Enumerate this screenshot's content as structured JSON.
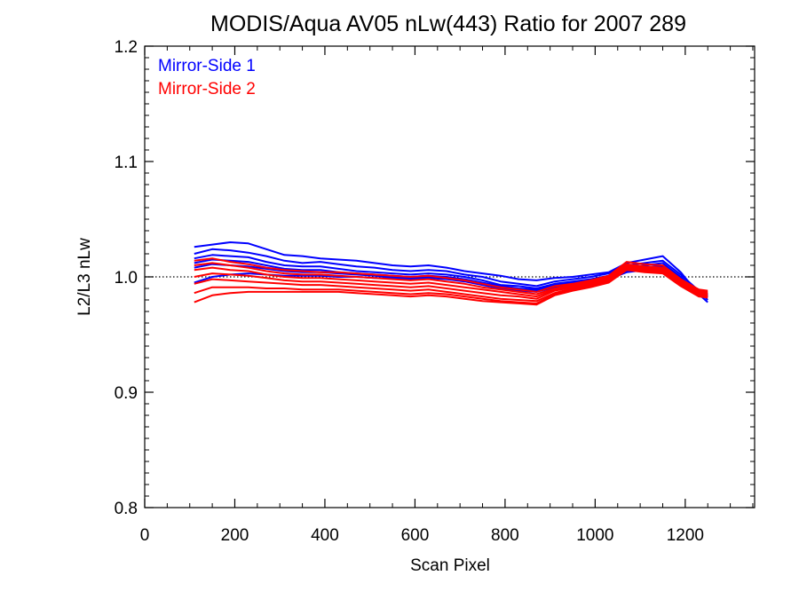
{
  "chart_data": {
    "type": "line",
    "title": "MODIS/Aqua AV05 nLw(443) Ratio for 2007 289",
    "xlabel": "Scan Pixel",
    "ylabel": "L2/L3 nLw",
    "xlim": [
      0,
      1354
    ],
    "ylim": [
      0.8,
      1.2
    ],
    "xticks": [
      "0",
      "200",
      "400",
      "600",
      "800",
      "1000",
      "1200"
    ],
    "xtick_values": [
      0,
      200,
      400,
      600,
      800,
      1000,
      1200
    ],
    "yticks": [
      "0.8",
      "0.9",
      "1.0",
      "1.1",
      "1.2"
    ],
    "ytick_values": [
      0.8,
      0.9,
      1.0,
      1.1,
      1.2
    ],
    "reference_line": {
      "y": 1.0,
      "style": "dotted"
    },
    "legend_placement": "top-left",
    "legend": [
      {
        "name": "Mirror-Side 1",
        "color": "#0000ff"
      },
      {
        "name": "Mirror-Side 2",
        "color": "#ff0000"
      }
    ],
    "x": [
      110,
      150,
      190,
      230,
      270,
      310,
      350,
      390,
      430,
      470,
      510,
      550,
      590,
      630,
      670,
      710,
      750,
      790,
      830,
      870,
      910,
      950,
      990,
      1030,
      1070,
      1110,
      1150,
      1190,
      1230,
      1250
    ],
    "groups": [
      {
        "name": "Mirror-Side 1",
        "color": "#0000ff",
        "series": [
          [
            1.026,
            1.028,
            1.03,
            1.029,
            1.024,
            1.019,
            1.018,
            1.016,
            1.015,
            1.014,
            1.012,
            1.01,
            1.009,
            1.01,
            1.008,
            1.005,
            1.003,
            1.001,
            0.998,
            0.997,
            0.999,
            1.0,
            1.002,
            1.004,
            1.012,
            1.015,
            1.018,
            1.004,
            0.985,
            0.978
          ],
          [
            1.02,
            1.024,
            1.023,
            1.021,
            1.018,
            1.014,
            1.012,
            1.013,
            1.011,
            1.009,
            1.008,
            1.006,
            1.005,
            1.006,
            1.005,
            1.002,
            1.0,
            0.996,
            0.994,
            0.992,
            0.996,
            0.998,
            1.0,
            1.003,
            1.01,
            1.012,
            1.014,
            1.002,
            0.988,
            0.98
          ],
          [
            1.016,
            1.019,
            1.018,
            1.017,
            1.013,
            1.01,
            1.009,
            1.009,
            1.007,
            1.005,
            1.004,
            1.003,
            1.002,
            1.003,
            1.002,
            1.0,
            0.997,
            0.993,
            0.992,
            0.99,
            0.994,
            0.996,
            0.998,
            1.001,
            1.008,
            1.01,
            1.012,
            1.0,
            0.986,
            0.982
          ],
          [
            1.012,
            1.015,
            1.014,
            1.013,
            1.01,
            1.007,
            1.006,
            1.006,
            1.004,
            1.003,
            1.002,
            1.001,
            1.0,
            1.001,
            1.0,
            0.998,
            0.995,
            0.992,
            0.99,
            0.989,
            0.993,
            0.995,
            0.997,
            1.0,
            1.006,
            1.008,
            1.01,
            0.999,
            0.987,
            0.983
          ],
          [
            1.008,
            1.011,
            1.01,
            1.009,
            1.007,
            1.005,
            1.004,
            1.004,
            1.003,
            1.002,
            1.001,
            1.0,
            0.999,
            1.0,
            0.999,
            0.997,
            0.994,
            0.991,
            0.989,
            0.988,
            0.992,
            0.994,
            0.996,
            0.999,
            1.005,
            1.007,
            1.009,
            0.998,
            0.988,
            0.984
          ],
          [
            0.995,
            1.0,
            1.002,
            1.003,
            1.002,
            1.001,
            1.001,
            1.001,
            1.0,
            1.0,
            0.999,
            0.999,
            0.998,
            0.999,
            0.998,
            0.996,
            0.993,
            0.99,
            0.988,
            0.987,
            0.991,
            0.993,
            0.995,
            0.998,
            1.004,
            1.006,
            1.008,
            0.997,
            0.989,
            0.985
          ]
        ]
      },
      {
        "name": "Mirror-Side 2",
        "color": "#ff0000",
        "series": [
          [
            1.014,
            1.016,
            1.013,
            1.011,
            1.008,
            1.006,
            1.005,
            1.004,
            1.004,
            1.003,
            1.002,
            1.001,
            1.0,
            1.001,
            0.999,
            0.997,
            0.994,
            0.991,
            0.989,
            0.987,
            0.992,
            0.994,
            0.997,
            1.001,
            1.013,
            1.011,
            1.01,
            0.998,
            0.989,
            0.988
          ],
          [
            1.01,
            1.012,
            1.01,
            1.008,
            1.005,
            1.003,
            1.002,
            1.002,
            1.001,
            1.0,
            0.999,
            0.998,
            0.997,
            0.998,
            0.996,
            0.994,
            0.991,
            0.989,
            0.987,
            0.985,
            0.99,
            0.993,
            0.996,
            1.0,
            1.011,
            1.009,
            1.008,
            0.997,
            0.988,
            0.987
          ],
          [
            1.006,
            1.008,
            1.006,
            1.005,
            1.002,
            1.0,
            0.999,
            0.999,
            0.998,
            0.997,
            0.996,
            0.995,
            0.994,
            0.995,
            0.993,
            0.991,
            0.989,
            0.987,
            0.985,
            0.983,
            0.989,
            0.992,
            0.995,
            0.999,
            1.01,
            1.008,
            1.007,
            0.996,
            0.987,
            0.986
          ],
          [
            1.0,
            1.003,
            1.002,
            1.001,
            0.999,
            0.997,
            0.996,
            0.996,
            0.995,
            0.994,
            0.993,
            0.992,
            0.991,
            0.992,
            0.99,
            0.988,
            0.986,
            0.984,
            0.983,
            0.981,
            0.988,
            0.991,
            0.994,
            0.998,
            1.009,
            1.007,
            1.006,
            0.995,
            0.986,
            0.985
          ],
          [
            0.994,
            0.998,
            0.997,
            0.996,
            0.995,
            0.994,
            0.993,
            0.993,
            0.992,
            0.991,
            0.99,
            0.989,
            0.988,
            0.989,
            0.987,
            0.985,
            0.983,
            0.981,
            0.98,
            0.979,
            0.986,
            0.99,
            0.993,
            0.997,
            1.008,
            1.006,
            1.005,
            0.994,
            0.985,
            0.984
          ],
          [
            0.986,
            0.991,
            0.991,
            0.991,
            0.99,
            0.99,
            0.989,
            0.989,
            0.989,
            0.988,
            0.987,
            0.986,
            0.985,
            0.986,
            0.985,
            0.983,
            0.981,
            0.979,
            0.978,
            0.977,
            0.985,
            0.989,
            0.992,
            0.996,
            1.007,
            1.005,
            1.004,
            0.993,
            0.984,
            0.983
          ],
          [
            0.978,
            0.984,
            0.986,
            0.987,
            0.987,
            0.987,
            0.987,
            0.987,
            0.987,
            0.986,
            0.985,
            0.984,
            0.983,
            0.984,
            0.983,
            0.981,
            0.979,
            0.978,
            0.977,
            0.976,
            0.984,
            0.988,
            0.991,
            0.995,
            1.006,
            1.004,
            1.003,
            0.992,
            0.983,
            0.982
          ]
        ]
      }
    ]
  }
}
